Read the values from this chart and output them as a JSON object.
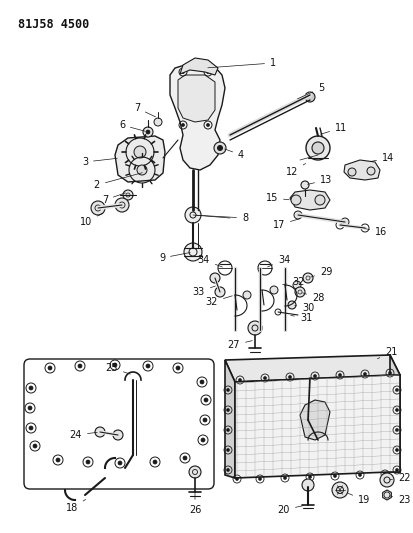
{
  "title_code": "81J58 4500",
  "bg_color": "#ffffff",
  "line_color": "#1a1a1a",
  "label_color": "#111111",
  "title_fontsize": 8.5,
  "label_fontsize": 7,
  "figsize": [
    4.13,
    5.33
  ],
  "dpi": 100
}
